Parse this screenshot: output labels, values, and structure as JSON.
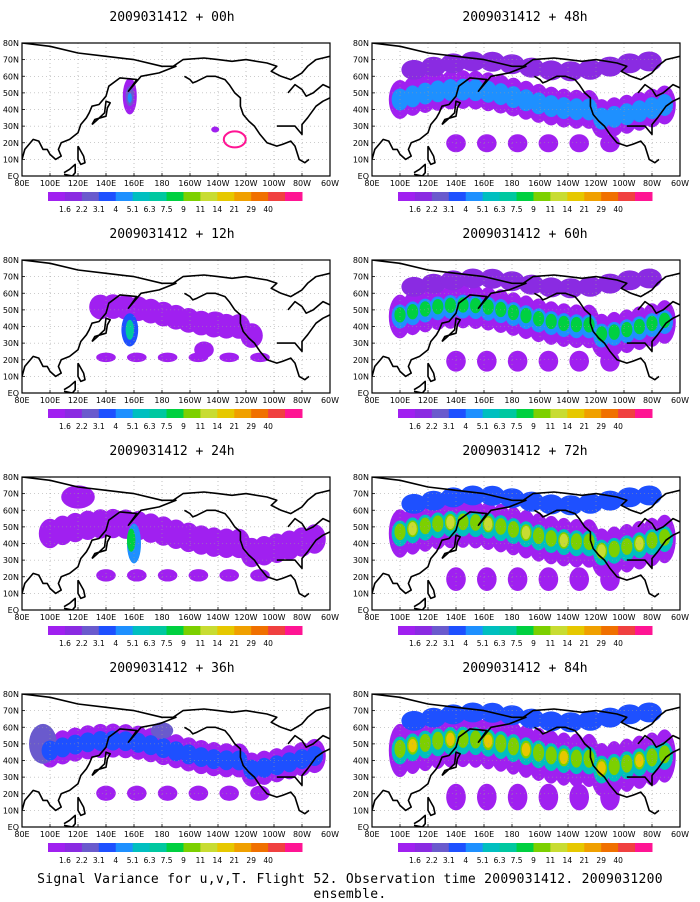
{
  "chart_data": {
    "type": "heatmap",
    "footer": "Signal Variance for u,v,T. Flight 52. Observation time 2009031412. 2009031200 ensemble.",
    "x_ticks": [
      "80E",
      "100E",
      "120E",
      "140E",
      "160E",
      "180",
      "160W",
      "140W",
      "120W",
      "100W",
      "80W",
      "60W"
    ],
    "y_ticks": [
      "EQ",
      "10N",
      "20N",
      "30N",
      "40N",
      "50N",
      "60N",
      "70N",
      "80N"
    ],
    "colorbar": {
      "labels": [
        "1.6",
        "2.2",
        "3.1",
        "4",
        "5.1",
        "6.3",
        "7.5",
        "9",
        "11",
        "14",
        "21",
        "29",
        "40"
      ],
      "colors": [
        "#a020f0",
        "#8a2be2",
        "#6a5acd",
        "#1e50ff",
        "#1e90ff",
        "#00bfc0",
        "#00c8a0",
        "#00d040",
        "#7cd000",
        "#c8dc32",
        "#e6c800",
        "#f0a000",
        "#f07000",
        "#f04040",
        "#ff1493"
      ]
    },
    "panels": [
      {
        "title": "2009031412 + 00h",
        "hour": 0
      },
      {
        "title": "2009031412 + 48h",
        "hour": 48
      },
      {
        "title": "2009031412 + 12h",
        "hour": 12
      },
      {
        "title": "2009031412 + 60h",
        "hour": 60
      },
      {
        "title": "2009031412 + 24h",
        "hour": 24
      },
      {
        "title": "2009031412 + 72h",
        "hour": 72
      },
      {
        "title": "2009031412 + 36h",
        "hour": 36
      },
      {
        "title": "2009031412 + 84h",
        "hour": 84
      }
    ]
  }
}
